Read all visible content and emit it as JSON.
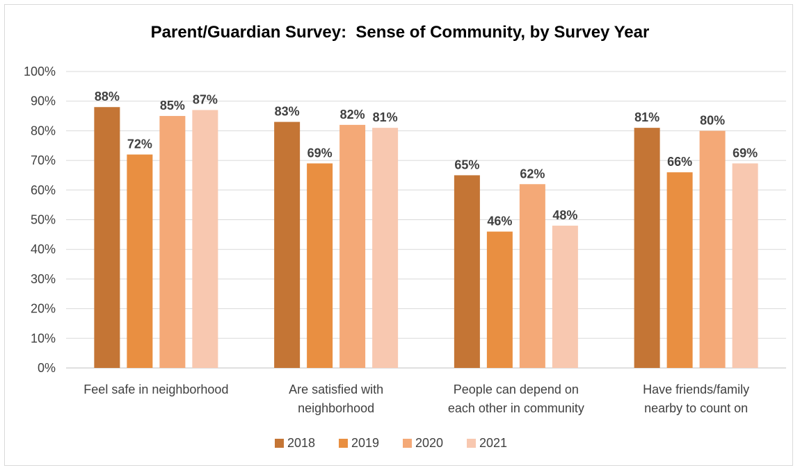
{
  "chart_data": {
    "type": "bar",
    "title": "Parent/Guardian Survey:  Sense of Community, by Survey Year",
    "xlabel": "",
    "ylabel": "",
    "ylim": [
      0,
      100
    ],
    "yticks": [
      "0%",
      "10%",
      "20%",
      "30%",
      "40%",
      "50%",
      "60%",
      "70%",
      "80%",
      "90%",
      "100%"
    ],
    "grid": true,
    "legend_position": "bottom",
    "categories": [
      [
        "Feel safe in neighborhood"
      ],
      [
        "Are satisfied with",
        "neighborhood"
      ],
      [
        "People can depend on",
        "each other in community"
      ],
      [
        "Have friends/family",
        "nearby to count on"
      ]
    ],
    "series": [
      {
        "name": "2018",
        "color": "#c47535",
        "values": [
          88,
          83,
          65,
          81
        ],
        "labels": [
          "88%",
          "83%",
          "65%",
          "81%"
        ]
      },
      {
        "name": "2019",
        "color": "#e98f41",
        "values": [
          72,
          69,
          46,
          66
        ],
        "labels": [
          "72%",
          "69%",
          "46%",
          "66%"
        ]
      },
      {
        "name": "2020",
        "color": "#f4a977",
        "values": [
          85,
          82,
          62,
          80
        ],
        "labels": [
          "85%",
          "82%",
          "62%",
          "80%"
        ]
      },
      {
        "name": "2021",
        "color": "#f8c8b0",
        "values": [
          87,
          81,
          48,
          69
        ],
        "labels": [
          "87%",
          "81%",
          "48%",
          "69%"
        ]
      }
    ]
  }
}
